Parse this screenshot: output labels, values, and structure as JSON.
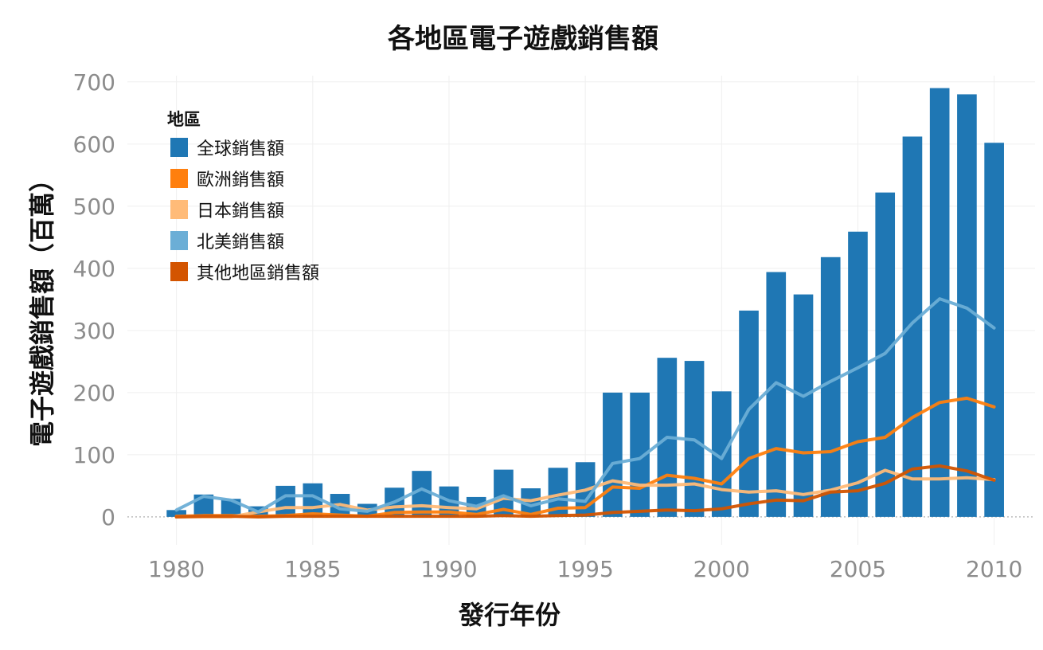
{
  "chart_data": {
    "type": "bar",
    "title": "各地區電子遊戲銷售額",
    "xlabel": "發行年份",
    "ylabel": "電子遊戲銷售額（百萬）",
    "xlim": [
      1978.2,
      2011.5
    ],
    "ylim": [
      -45,
      710
    ],
    "x_ticks": [
      "1980",
      "1985",
      "1990",
      "1995",
      "2000",
      "2005",
      "2010"
    ],
    "y_ticks": [
      "0",
      "100",
      "200",
      "300",
      "400",
      "500",
      "600",
      "700"
    ],
    "grid": true,
    "legend": {
      "title": "地區",
      "position": "top-left"
    },
    "x": [
      1980,
      1981,
      1982,
      1983,
      1984,
      1985,
      1986,
      1987,
      1988,
      1989,
      1990,
      1991,
      1992,
      1993,
      1994,
      1995,
      1996,
      1997,
      1998,
      1999,
      2000,
      2001,
      2002,
      2003,
      2004,
      2005,
      2006,
      2007,
      2008,
      2009,
      2010
    ],
    "series": [
      {
        "name": "全球銷售額",
        "kind": "bar",
        "color": "#1f77b4",
        "values": [
          11,
          36,
          29,
          17,
          50,
          54,
          37,
          21,
          47,
          74,
          49,
          32,
          76,
          46,
          79,
          88,
          200,
          200,
          256,
          251,
          202,
          332,
          394,
          358,
          418,
          459,
          522,
          612,
          690,
          680,
          602
        ]
      },
      {
        "name": "歐洲銷售額",
        "kind": "line",
        "color": "#ff7f0e",
        "values": [
          1,
          2,
          2,
          1,
          2,
          5,
          3,
          1,
          7,
          8,
          8,
          4,
          12,
          4,
          14,
          15,
          48,
          46,
          67,
          62,
          53,
          94,
          110,
          103,
          105,
          121,
          128,
          160,
          184,
          191,
          177
        ]
      },
      {
        "name": "日本銷售額",
        "kind": "line",
        "color": "#ffbb78",
        "values": [
          0,
          0,
          0,
          8,
          15,
          15,
          20,
          11,
          16,
          18,
          15,
          13,
          30,
          26,
          35,
          43,
          58,
          51,
          51,
          53,
          44,
          40,
          42,
          36,
          43,
          55,
          75,
          61,
          61,
          63,
          60
        ]
      },
      {
        "name": "北美銷售額",
        "kind": "line",
        "color": "#6baed6",
        "values": [
          11,
          33,
          27,
          8,
          34,
          34,
          13,
          9,
          24,
          45,
          26,
          17,
          34,
          18,
          29,
          25,
          86,
          94,
          128,
          124,
          94,
          173,
          216,
          194,
          218,
          240,
          263,
          312,
          351,
          336,
          304
        ]
      },
      {
        "name": "其他地區銷售額",
        "kind": "line",
        "color": "#d35400",
        "values": [
          0,
          1,
          1,
          0,
          1,
          1,
          1,
          1,
          1,
          1,
          1,
          1,
          2,
          1,
          2,
          3,
          7,
          9,
          11,
          10,
          13,
          21,
          27,
          26,
          40,
          42,
          54,
          77,
          82,
          74,
          59
        ]
      }
    ]
  }
}
